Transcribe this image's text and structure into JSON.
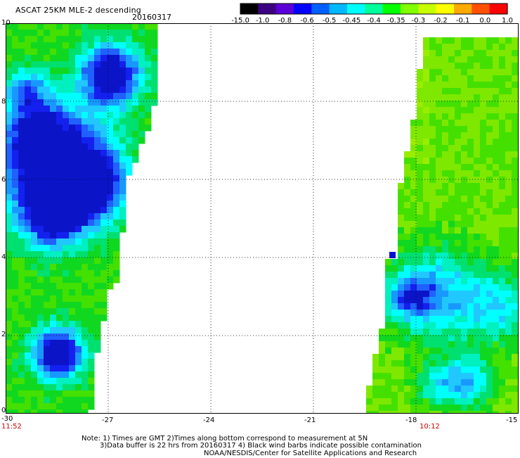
{
  "header": {
    "title": "ASCAT 25KM MLE-2 descending",
    "date": "20160317"
  },
  "colorbar": {
    "labels": [
      "-15.0",
      "-1.0",
      "-0.8",
      "-0.6",
      "-0.5",
      "-0.45",
      "-0.4",
      "-0.35",
      "-0.3",
      "-0.2",
      "-0.1",
      "0.0",
      "1.0"
    ],
    "colors": [
      "#000000",
      "#3d0080",
      "#5a00d8",
      "#0000ff",
      "#0060ff",
      "#00b8ff",
      "#00ffff",
      "#00ff9a",
      "#00ff00",
      "#7fff00",
      "#c8ff00",
      "#ffff00",
      "#ffaa00",
      "#ff5000",
      "#ff0000"
    ]
  },
  "axes": {
    "x_ticks": [
      "-30",
      "-27",
      "-24",
      "-21",
      "-18",
      "-15"
    ],
    "y_ticks": [
      "0",
      "2",
      "4",
      "6",
      "8",
      "10"
    ],
    "x_range": [
      -30,
      -15
    ],
    "y_range": [
      0,
      10
    ]
  },
  "times": {
    "left": "11:52",
    "right": "10:12"
  },
  "note": {
    "line1": "Note: 1) Times are GMT 2)Times along bottom correspond to measurement at 5N",
    "line2": "3)Data buffer is 22 hrs from 20160317 4) Black wind barbs indicate possible contamination",
    "line3": "NOAA/NESDIS/Center for Satellite Applications and Research"
  }
}
